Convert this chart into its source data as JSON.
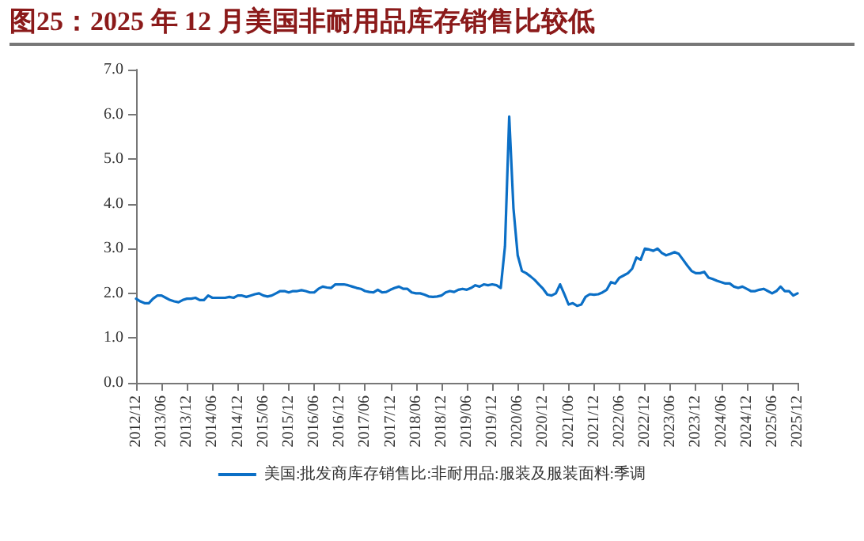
{
  "chart_data": {
    "type": "line",
    "title": "图25：2025 年 12 月美国非耐用品库存销售比较低",
    "categories": [
      "2012/12",
      null,
      null,
      null,
      null,
      null,
      "2013/06",
      null,
      null,
      null,
      null,
      null,
      "2013/12",
      null,
      null,
      null,
      null,
      null,
      "2014/06",
      null,
      null,
      null,
      null,
      null,
      "2014/12",
      null,
      null,
      null,
      null,
      null,
      "2015/06",
      null,
      null,
      null,
      null,
      null,
      "2015/12",
      null,
      null,
      null,
      null,
      null,
      "2016/06",
      null,
      null,
      null,
      null,
      null,
      "2016/12",
      null,
      null,
      null,
      null,
      null,
      "2017/06",
      null,
      null,
      null,
      null,
      null,
      "2017/12",
      null,
      null,
      null,
      null,
      null,
      "2018/06",
      null,
      null,
      null,
      null,
      null,
      "2018/12",
      null,
      null,
      null,
      null,
      null,
      "2019/06",
      null,
      null,
      null,
      null,
      null,
      "2019/12",
      null,
      null,
      null,
      null,
      null,
      "2020/06",
      null,
      null,
      null,
      null,
      null,
      "2020/12",
      null,
      null,
      null,
      null,
      null,
      "2021/06",
      null,
      null,
      null,
      null,
      null,
      "2021/12",
      null,
      null,
      null,
      null,
      null,
      "2022/06",
      null,
      null,
      null,
      null,
      null,
      "2022/12",
      null,
      null,
      null,
      null,
      null,
      "2023/06",
      null,
      null,
      null,
      null,
      null,
      "2023/12",
      null,
      null,
      null,
      null,
      null,
      "2024/06",
      null,
      null,
      null,
      null,
      null,
      "2024/12",
      null,
      null,
      null,
      null,
      null,
      "2025/06",
      null,
      null,
      null,
      null,
      null,
      "2025/12"
    ],
    "series": [
      {
        "name": "美国:批发商库存销售比:非耐用品:服装及服装面料:季调",
        "color": "#0b6fc6",
        "values": [
          1.88,
          1.82,
          1.78,
          1.78,
          1.88,
          1.95,
          1.95,
          1.9,
          1.85,
          1.82,
          1.8,
          1.85,
          1.88,
          1.88,
          1.9,
          1.85,
          1.85,
          1.95,
          1.9,
          1.9,
          1.9,
          1.9,
          1.92,
          1.9,
          1.95,
          1.95,
          1.92,
          1.95,
          1.98,
          2.0,
          1.95,
          1.93,
          1.95,
          2.0,
          2.05,
          2.05,
          2.02,
          2.05,
          2.05,
          2.07,
          2.05,
          2.02,
          2.02,
          2.1,
          2.15,
          2.13,
          2.12,
          2.2,
          2.2,
          2.2,
          2.18,
          2.15,
          2.12,
          2.1,
          2.05,
          2.03,
          2.02,
          2.08,
          2.02,
          2.03,
          2.08,
          2.12,
          2.15,
          2.1,
          2.1,
          2.02,
          2.0,
          2.0,
          1.97,
          1.93,
          1.92,
          1.93,
          1.95,
          2.02,
          2.05,
          2.03,
          2.08,
          2.1,
          2.08,
          2.12,
          2.18,
          2.15,
          2.2,
          2.18,
          2.2,
          2.18,
          2.12,
          3.05,
          5.95,
          3.9,
          2.85,
          2.5,
          2.45,
          2.38,
          2.3,
          2.2,
          2.1,
          1.97,
          1.95,
          2.0,
          2.2,
          1.98,
          1.75,
          1.78,
          1.72,
          1.75,
          1.92,
          1.98,
          1.97,
          1.98,
          2.02,
          2.08,
          2.25,
          2.22,
          2.35,
          2.4,
          2.45,
          2.55,
          2.8,
          2.75,
          3.0,
          2.98,
          2.95,
          3.0,
          2.9,
          2.85,
          2.88,
          2.92,
          2.88,
          2.75,
          2.62,
          2.5,
          2.45,
          2.45,
          2.48,
          2.35,
          2.32,
          2.28,
          2.25,
          2.22,
          2.22,
          2.15,
          2.12,
          2.15,
          2.1,
          2.05,
          2.05,
          2.08,
          2.1,
          2.05,
          2.0,
          2.05,
          2.15,
          2.05,
          2.05,
          1.95,
          2.0
        ]
      }
    ],
    "ylim": [
      0,
      7
    ],
    "yticks": [
      {
        "value": 0,
        "label": "0.0"
      },
      {
        "value": 1,
        "label": "1.0"
      },
      {
        "value": 2,
        "label": "2.0"
      },
      {
        "value": 3,
        "label": "3.0"
      },
      {
        "value": 4,
        "label": "4.0"
      },
      {
        "value": 5,
        "label": "5.0"
      },
      {
        "value": 6,
        "label": "6.0"
      },
      {
        "value": 7,
        "label": "7.0"
      }
    ],
    "grid": false,
    "legend": "bottom",
    "marker": "none",
    "line_style": "solid"
  }
}
